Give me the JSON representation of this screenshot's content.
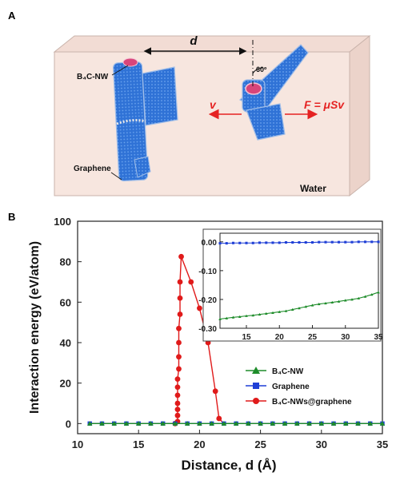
{
  "panel_a": {
    "label": "A",
    "distance_label": "d",
    "angle_label": "60º",
    "nanowire_label": "B₄C-NW",
    "graphene_label": "Graphene",
    "velocity_label": "v",
    "force_label": "F = μSv",
    "medium_label": "Water",
    "colors": {
      "box": "#f7e6df",
      "box_edge": "#c9b3ab",
      "graphene": "#2f72d6",
      "arrow": "#e52222",
      "nanowire": "#d8457a"
    }
  },
  "panel_b": {
    "label": "B",
    "legend": [
      "B₄C-NW",
      "Graphene",
      "B₄C-NWs@graphene"
    ],
    "inset_x_ticks": [
      "15",
      "20",
      "25",
      "30",
      "35"
    ],
    "inset_y_ticks": [
      "0.00",
      "-0.10",
      "-0.20",
      "-0.30"
    ]
  },
  "chart_data": {
    "type": "line",
    "xlabel": "Distance, d (Å)",
    "ylabel": "Interaction energy (eV/atom)",
    "xlim": [
      10,
      35
    ],
    "ylim": [
      -5,
      100
    ],
    "x_ticks": [
      10,
      15,
      20,
      25,
      30,
      35
    ],
    "y_ticks": [
      0,
      20,
      40,
      60,
      80,
      100
    ],
    "grid": false,
    "legend_position": "bottom-right",
    "series": [
      {
        "name": "B₄C-NW",
        "color": "#1e8c2a",
        "marker": "triangle",
        "x": [
          11,
          12,
          13,
          14,
          15,
          16,
          17,
          18,
          19,
          20,
          21,
          22,
          23,
          24,
          25,
          26,
          27,
          28,
          29,
          30,
          31,
          32,
          33,
          34,
          35
        ],
        "y": [
          0,
          0,
          0,
          0,
          0,
          0,
          0,
          0,
          0,
          0,
          0,
          0,
          0,
          0,
          0,
          0,
          0,
          0,
          0,
          0,
          0,
          0,
          0,
          0,
          0
        ]
      },
      {
        "name": "Graphene",
        "color": "#1f3fd6",
        "marker": "square",
        "x": [
          11,
          12,
          13,
          14,
          15,
          16,
          17,
          18,
          19,
          20,
          21,
          22,
          23,
          24,
          25,
          26,
          27,
          28,
          29,
          30,
          31,
          32,
          33,
          34,
          35
        ],
        "y": [
          0,
          0,
          0,
          0,
          0,
          0,
          0,
          0,
          0,
          0,
          0,
          0,
          0,
          0,
          0,
          0,
          0,
          0,
          0,
          0,
          0,
          0,
          0,
          0,
          0
        ]
      },
      {
        "name": "B₄C-NWs@graphene",
        "color": "#e01a1a",
        "marker": "circle",
        "x": [
          11,
          12,
          13,
          14,
          15,
          16,
          17,
          18,
          18.2,
          18.2,
          18.2,
          18.2,
          18.2,
          18.2,
          18.2,
          18.3,
          18.3,
          18.3,
          18.3,
          18.4,
          18.4,
          18.4,
          18.5,
          19.3,
          20.0,
          20.7,
          21.3,
          21.6,
          22,
          23,
          24,
          25,
          26,
          27,
          28,
          29,
          30,
          31,
          32,
          33,
          34,
          35
        ],
        "y": [
          0,
          0,
          0,
          0,
          0,
          0,
          0,
          0,
          1,
          4,
          7,
          10,
          14,
          18,
          22,
          27,
          33,
          40,
          47,
          54,
          62,
          70,
          82.5,
          70,
          57,
          40,
          16,
          2.5,
          0,
          0,
          0,
          0,
          0,
          0,
          0,
          0,
          0,
          0,
          0,
          0,
          0,
          0
        ]
      }
    ],
    "inset": {
      "xlim": [
        11,
        35
      ],
      "ylim": [
        -0.3,
        0.03
      ],
      "x_ticks": [
        15,
        20,
        25,
        30,
        35
      ],
      "y_ticks": [
        0.0,
        -0.1,
        -0.2,
        -0.3
      ],
      "series": [
        {
          "name": "B₄C-NW",
          "color": "#1e8c2a",
          "marker": "triangle",
          "x": [
            11,
            12,
            13,
            14,
            15,
            16,
            17,
            18,
            19,
            20,
            21,
            22,
            23,
            24,
            25,
            26,
            27,
            28,
            29,
            30,
            31,
            32,
            33,
            34,
            35
          ],
          "y": [
            -0.268,
            -0.265,
            -0.262,
            -0.26,
            -0.257,
            -0.255,
            -0.252,
            -0.249,
            -0.246,
            -0.243,
            -0.24,
            -0.235,
            -0.23,
            -0.225,
            -0.22,
            -0.216,
            -0.213,
            -0.21,
            -0.207,
            -0.203,
            -0.2,
            -0.196,
            -0.19,
            -0.183,
            -0.175
          ]
        },
        {
          "name": "Graphene",
          "color": "#1f3fd6",
          "marker": "square",
          "x": [
            11,
            12,
            13,
            14,
            15,
            16,
            17,
            18,
            19,
            20,
            21,
            22,
            23,
            24,
            25,
            26,
            27,
            28,
            29,
            30,
            31,
            32,
            33,
            34,
            35
          ],
          "y": [
            -0.005,
            -0.005,
            -0.004,
            -0.004,
            -0.004,
            -0.004,
            -0.003,
            -0.003,
            -0.003,
            -0.003,
            -0.002,
            -0.002,
            -0.002,
            -0.002,
            -0.002,
            -0.001,
            -0.001,
            -0.001,
            -0.001,
            -0.001,
            -0.001,
            0.0,
            0.0,
            0.0,
            0.0
          ]
        }
      ]
    }
  }
}
